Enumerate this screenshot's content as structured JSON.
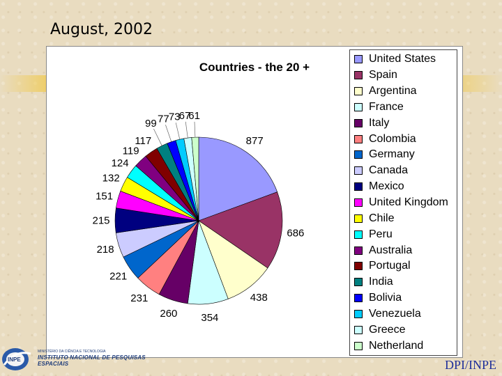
{
  "slide": {
    "title": "August, 2002",
    "footer_right": "DPI/INPE",
    "footer_org_small": "MINISTÉRIO DA CIÊNCIA E TECNOLOGIA",
    "footer_org_name": "INSTITUTO NACIONAL DE PESQUISAS ESPACIAIS",
    "logo_text": "INPE"
  },
  "chart_data": {
    "type": "pie",
    "title": "Countries - the 20 +",
    "legend_position": "right",
    "series": [
      {
        "name": "United States",
        "value": 877,
        "color": "#9999ff"
      },
      {
        "name": "Spain",
        "value": 686,
        "color": "#993366"
      },
      {
        "name": "Argentina",
        "value": 438,
        "color": "#ffffcc"
      },
      {
        "name": "France",
        "value": 354,
        "color": "#ccffff"
      },
      {
        "name": "Italy",
        "value": 260,
        "color": "#660066"
      },
      {
        "name": "Colombia",
        "value": 231,
        "color": "#ff8080"
      },
      {
        "name": "Germany",
        "value": 221,
        "color": "#0066cc"
      },
      {
        "name": "Canada",
        "value": 218,
        "color": "#ccccff"
      },
      {
        "name": "Mexico",
        "value": 215,
        "color": "#000080"
      },
      {
        "name": "United Kingdom",
        "value": 151,
        "color": "#ff00ff"
      },
      {
        "name": "Chile",
        "value": 132,
        "color": "#ffff00"
      },
      {
        "name": "Peru",
        "value": 124,
        "color": "#00ffff"
      },
      {
        "name": "Australia",
        "value": 119,
        "color": "#800080"
      },
      {
        "name": "Portugal",
        "value": 117,
        "color": "#800000"
      },
      {
        "name": "India",
        "value": 99,
        "color": "#008080"
      },
      {
        "name": "Bolivia",
        "value": 77,
        "color": "#0000ff"
      },
      {
        "name": "Venezuela",
        "value": 73,
        "color": "#00ccff"
      },
      {
        "name": "Greece",
        "value": 67,
        "color": "#ccffff"
      },
      {
        "name": "Netherland",
        "value": 61,
        "color": "#ccffcc"
      }
    ]
  }
}
